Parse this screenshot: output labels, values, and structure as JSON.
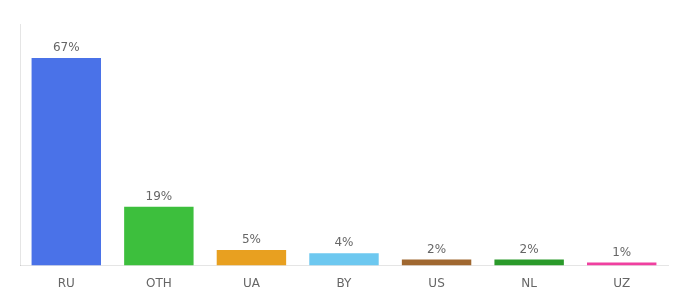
{
  "chart_data": {
    "type": "bar",
    "categories": [
      "RU",
      "OTH",
      "UA",
      "BY",
      "US",
      "NL",
      "UZ"
    ],
    "values": [
      67,
      19,
      5,
      4,
      2,
      2,
      1
    ],
    "value_labels": [
      "67%",
      "19%",
      "5%",
      "4%",
      "2%",
      "2%",
      "1%"
    ],
    "colors": [
      "#4A72E8",
      "#3DBF3D",
      "#E8A020",
      "#6DC8F0",
      "#A06830",
      "#2A9A2A",
      "#F040A0"
    ],
    "ylim": [
      0,
      78
    ],
    "grid": false,
    "data_labels": true,
    "tick_labels": "x"
  }
}
